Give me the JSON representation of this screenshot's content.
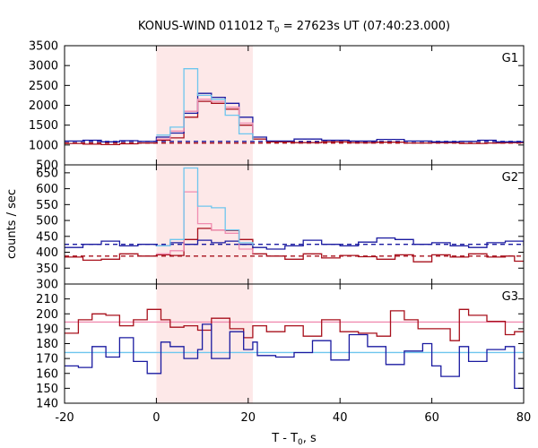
{
  "chart_data": {
    "type": "line",
    "title_main": "KONUS-WIND 011012 T",
    "title_sub": "0",
    "title_rest": " = 27623s UT (07:40:23.000)",
    "xlabel_main": "T - T",
    "xlabel_sub": "0",
    "xlabel_rest": ", s",
    "ylabel": "counts / sec",
    "xlim": [
      -20,
      80
    ],
    "x_ticks": [
      -20,
      0,
      20,
      40,
      60,
      80
    ],
    "highlight_x": [
      0,
      21
    ],
    "colors": {
      "highlight": "#fde8e8",
      "light_blue": "#6ec6ee",
      "pink": "#f08cb0",
      "dark_blue": "#1a1aa0",
      "dark_red": "#a8101c"
    },
    "panels": [
      {
        "label": "G1",
        "ylim": [
          500,
          3500
        ],
        "y_ticks": [
          500,
          1000,
          1500,
          2000,
          2500,
          3000,
          3500
        ],
        "hlines": [
          {
            "y": 1090,
            "color": "#1a1aa0",
            "dash": true
          },
          {
            "y": 1050,
            "color": "#a8101c",
            "dash": true
          }
        ],
        "series": [
          {
            "color": "#a8101c",
            "steps": [
              [
                -20,
                1040
              ],
              [
                -16,
                1020
              ],
              [
                -12,
                1010
              ],
              [
                -8,
                1030
              ],
              [
                -4,
                1050
              ],
              [
                0,
                1120
              ],
              [
                3,
                1180
              ],
              [
                6,
                1700
              ],
              [
                9,
                2100
              ],
              [
                12,
                2050
              ],
              [
                15,
                1900
              ],
              [
                18,
                1500
              ],
              [
                21,
                1150
              ],
              [
                24,
                1080
              ],
              [
                30,
                1060
              ],
              [
                36,
                1080
              ],
              [
                42,
                1060
              ],
              [
                48,
                1070
              ],
              [
                54,
                1050
              ],
              [
                60,
                1060
              ],
              [
                66,
                1040
              ],
              [
                72,
                1050
              ],
              [
                76,
                1060
              ],
              [
                80,
                1060
              ]
            ]
          },
          {
            "color": "#1a1aa0",
            "steps": [
              [
                -20,
                1100
              ],
              [
                -16,
                1120
              ],
              [
                -12,
                1080
              ],
              [
                -8,
                1110
              ],
              [
                -4,
                1090
              ],
              [
                0,
                1200
              ],
              [
                3,
                1300
              ],
              [
                6,
                1800
              ],
              [
                9,
                2300
              ],
              [
                12,
                2200
              ],
              [
                15,
                2050
              ],
              [
                18,
                1700
              ],
              [
                21,
                1200
              ],
              [
                24,
                1100
              ],
              [
                30,
                1150
              ],
              [
                36,
                1120
              ],
              [
                42,
                1100
              ],
              [
                48,
                1140
              ],
              [
                54,
                1100
              ],
              [
                60,
                1080
              ],
              [
                66,
                1090
              ],
              [
                70,
                1120
              ],
              [
                74,
                1080
              ],
              [
                80,
                1080
              ]
            ]
          },
          {
            "color": "#f08cb0",
            "steps": [
              [
                0,
                1150
              ],
              [
                3,
                1350
              ],
              [
                6,
                1850
              ],
              [
                9,
                2150
              ],
              [
                12,
                2100
              ],
              [
                15,
                1950
              ],
              [
                18,
                1550
              ],
              [
                21,
                1200
              ]
            ]
          },
          {
            "color": "#6ec6ee",
            "steps": [
              [
                0,
                1250
              ],
              [
                3,
                1450
              ],
              [
                6,
                2920
              ],
              [
                9,
                2250
              ],
              [
                12,
                2150
              ],
              [
                15,
                1750
              ],
              [
                18,
                1280
              ],
              [
                21,
                1120
              ]
            ]
          }
        ]
      },
      {
        "label": "G2",
        "ylim": [
          300,
          675
        ],
        "y_ticks": [
          300,
          350,
          400,
          450,
          500,
          550,
          600,
          650
        ],
        "hlines": [
          {
            "y": 425,
            "color": "#1a1aa0",
            "dash": true
          },
          {
            "y": 388,
            "color": "#a8101c",
            "dash": true
          }
        ],
        "series": [
          {
            "color": "#a8101c",
            "steps": [
              [
                -20,
                385
              ],
              [
                -16,
                375
              ],
              [
                -12,
                378
              ],
              [
                -8,
                395
              ],
              [
                -4,
                388
              ],
              [
                0,
                392
              ],
              [
                3,
                390
              ],
              [
                6,
                440
              ],
              [
                9,
                475
              ],
              [
                12,
                470
              ],
              [
                15,
                468
              ],
              [
                18,
                440
              ],
              [
                21,
                395
              ],
              [
                24,
                388
              ],
              [
                28,
                378
              ],
              [
                32,
                395
              ],
              [
                36,
                382
              ],
              [
                40,
                390
              ],
              [
                44,
                386
              ],
              [
                48,
                378
              ],
              [
                52,
                392
              ],
              [
                56,
                370
              ],
              [
                60,
                392
              ],
              [
                64,
                385
              ],
              [
                68,
                395
              ],
              [
                72,
                385
              ],
              [
                76,
                388
              ],
              [
                78,
                372
              ],
              [
                80,
                372
              ]
            ]
          },
          {
            "color": "#1a1aa0",
            "steps": [
              [
                -20,
                415
              ],
              [
                -16,
                425
              ],
              [
                -12,
                435
              ],
              [
                -8,
                420
              ],
              [
                -4,
                425
              ],
              [
                0,
                420
              ],
              [
                3,
                430
              ],
              [
                6,
                425
              ],
              [
                9,
                438
              ],
              [
                12,
                430
              ],
              [
                15,
                435
              ],
              [
                18,
                425
              ],
              [
                21,
                415
              ],
              [
                24,
                410
              ],
              [
                28,
                420
              ],
              [
                32,
                438
              ],
              [
                36,
                425
              ],
              [
                40,
                420
              ],
              [
                44,
                432
              ],
              [
                48,
                445
              ],
              [
                52,
                440
              ],
              [
                56,
                425
              ],
              [
                60,
                430
              ],
              [
                64,
                420
              ],
              [
                68,
                415
              ],
              [
                72,
                430
              ],
              [
                76,
                435
              ],
              [
                80,
                420
              ]
            ]
          },
          {
            "color": "#f08cb0",
            "steps": [
              [
                0,
                395
              ],
              [
                3,
                405
              ],
              [
                6,
                590
              ],
              [
                9,
                490
              ],
              [
                12,
                470
              ],
              [
                15,
                460
              ],
              [
                18,
                410
              ],
              [
                21,
                395
              ]
            ]
          },
          {
            "color": "#6ec6ee",
            "steps": [
              [
                0,
                420
              ],
              [
                3,
                440
              ],
              [
                6,
                665
              ],
              [
                9,
                545
              ],
              [
                12,
                540
              ],
              [
                15,
                470
              ],
              [
                18,
                430
              ],
              [
                21,
                420
              ]
            ]
          }
        ]
      },
      {
        "label": "G3",
        "ylim": [
          140,
          220
        ],
        "y_ticks": [
          140,
          150,
          160,
          170,
          180,
          190,
          200,
          210
        ],
        "hlines": [
          {
            "y": 194.5,
            "color": "#f08cb0",
            "dash": false
          },
          {
            "y": 174,
            "color": "#6ec6ee",
            "dash": false
          }
        ],
        "series": [
          {
            "color": "#a8101c",
            "steps": [
              [
                -20,
                187
              ],
              [
                -17,
                196
              ],
              [
                -14,
                200
              ],
              [
                -11,
                199
              ],
              [
                -8,
                192
              ],
              [
                -5,
                196
              ],
              [
                -2,
                203
              ],
              [
                1,
                196
              ],
              [
                3,
                191
              ],
              [
                6,
                192
              ],
              [
                9,
                189
              ],
              [
                12,
                197
              ],
              [
                16,
                190
              ],
              [
                19,
                184
              ],
              [
                21,
                192
              ],
              [
                24,
                188
              ],
              [
                28,
                192
              ],
              [
                32,
                185
              ],
              [
                36,
                196
              ],
              [
                40,
                188
              ],
              [
                44,
                187
              ],
              [
                48,
                185
              ],
              [
                51,
                202
              ],
              [
                54,
                196
              ],
              [
                57,
                190
              ],
              [
                61,
                190
              ],
              [
                64,
                182
              ],
              [
                66,
                203
              ],
              [
                68,
                199
              ],
              [
                72,
                195
              ],
              [
                76,
                186
              ],
              [
                78,
                188
              ],
              [
                80,
                188
              ]
            ]
          },
          {
            "color": "#1a1aa0",
            "steps": [
              [
                -20,
                165
              ],
              [
                -17,
                164
              ],
              [
                -14,
                178
              ],
              [
                -11,
                171
              ],
              [
                -8,
                184
              ],
              [
                -5,
                168
              ],
              [
                -2,
                160
              ],
              [
                1,
                181
              ],
              [
                3,
                178
              ],
              [
                6,
                170
              ],
              [
                9,
                176
              ],
              [
                10,
                193
              ],
              [
                12,
                170
              ],
              [
                16,
                188
              ],
              [
                19,
                176
              ],
              [
                21,
                181
              ],
              [
                22,
                172
              ],
              [
                26,
                171
              ],
              [
                30,
                174
              ],
              [
                34,
                182
              ],
              [
                38,
                169
              ],
              [
                42,
                186
              ],
              [
                46,
                178
              ],
              [
                50,
                166
              ],
              [
                54,
                175
              ],
              [
                58,
                180
              ],
              [
                60,
                165
              ],
              [
                62,
                158
              ],
              [
                66,
                178
              ],
              [
                68,
                168
              ],
              [
                72,
                176
              ],
              [
                76,
                178
              ],
              [
                78,
                150
              ],
              [
                80,
                150
              ]
            ]
          }
        ]
      }
    ]
  }
}
